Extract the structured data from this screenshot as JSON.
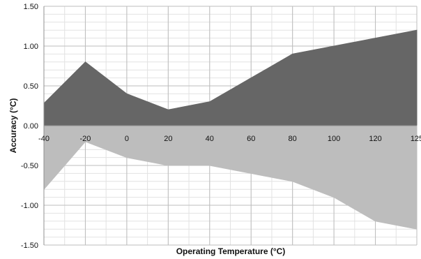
{
  "chart_data": {
    "type": "area",
    "title": "",
    "xlabel": "Operating Temperature (°C)",
    "ylabel": "Accuracy (°C)",
    "x": [
      -40,
      -20,
      0,
      20,
      40,
      60,
      80,
      100,
      120,
      125
    ],
    "x_tick_labels": [
      "-40",
      "-20",
      "0",
      "20",
      "40",
      "60",
      "80",
      "100",
      "120",
      "125"
    ],
    "y_tick_values": [
      1.5,
      1.0,
      0.5,
      0.0,
      -0.5,
      -1.0,
      -1.5
    ],
    "y_tick_labels": [
      "1.50",
      "1.00",
      "0.50",
      "0.00",
      "-0.50",
      "-1.00",
      "-1.50"
    ],
    "ylim": [
      -1.5,
      1.5
    ],
    "grid": true,
    "legend": "none",
    "series": [
      {
        "values": [
          0.28,
          0.8,
          0.4,
          0.2,
          0.3,
          0.6,
          0.9,
          1.0,
          1.1,
          1.2
        ],
        "color": "#666666"
      },
      {
        "values": [
          -0.8,
          -0.2,
          -0.4,
          -0.5,
          -0.5,
          -0.6,
          -0.7,
          -0.9,
          -1.2,
          -1.3
        ],
        "color": "#bdbdbd"
      }
    ],
    "colors": {
      "grid_major": "#bdbdbd",
      "grid_minor": "#e2e2e2",
      "axis": "#909090"
    }
  }
}
